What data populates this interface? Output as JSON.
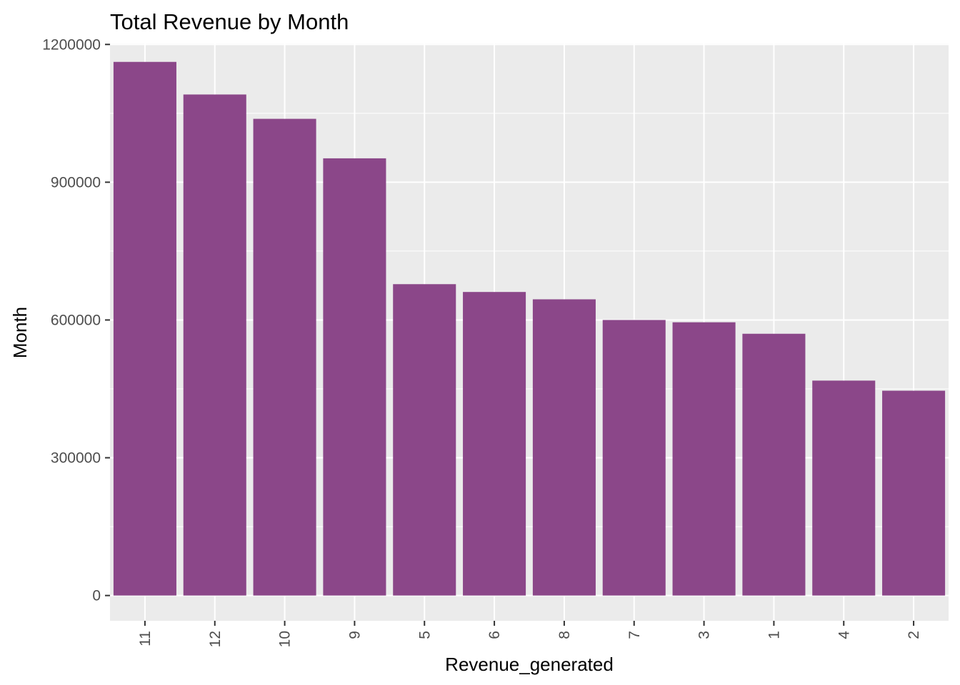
{
  "chart_data": {
    "type": "bar",
    "title": "Total Revenue by Month",
    "xlabel": "Revenue_generated",
    "ylabel": "Month",
    "categories": [
      "11",
      "12",
      "10",
      "9",
      "5",
      "6",
      "8",
      "7",
      "3",
      "1",
      "4",
      "2"
    ],
    "values": [
      1162000,
      1091000,
      1038000,
      952000,
      678000,
      661000,
      645000,
      600000,
      595000,
      570000,
      468000,
      446000
    ],
    "ylim": [
      -55000,
      1202000
    ],
    "yticks": [
      0,
      300000,
      600000,
      900000,
      1200000
    ],
    "ytick_labels": [
      "0",
      "300000",
      "600000",
      "900000",
      "1200000"
    ],
    "grid": true,
    "legend": "none",
    "bar_color": "#8B4789",
    "panel_background": "#EBEBEB",
    "grid_color": "#FFFFFF"
  }
}
